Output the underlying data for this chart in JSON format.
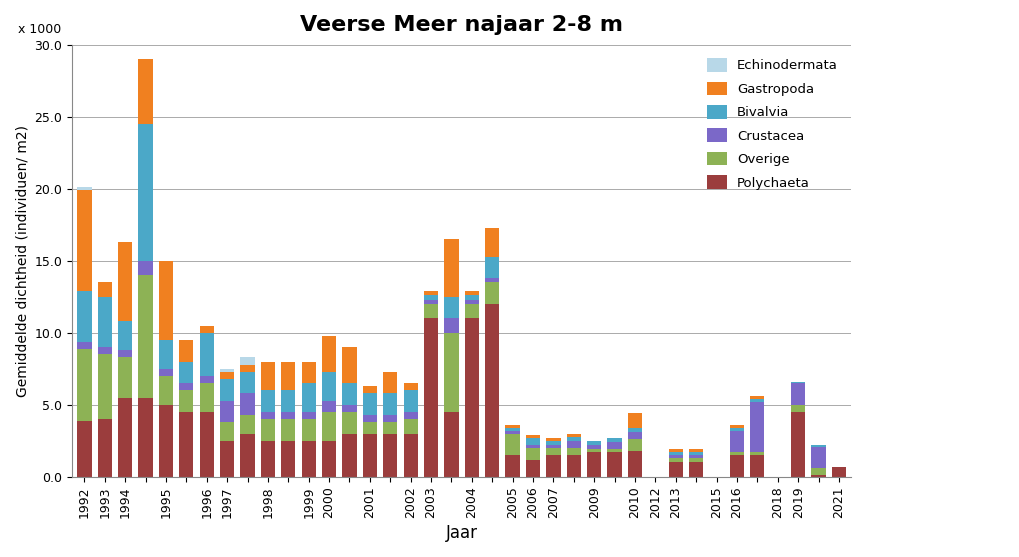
{
  "title": "Veerse Meer najaar 2-8 m",
  "ylabel": "Gemiddelde dichtheid (individuen/ m2)",
  "xlabel": "Jaar",
  "ylabel2": "x 1000",
  "ylim": [
    0,
    30.0
  ],
  "yticks": [
    0.0,
    5.0,
    10.0,
    15.0,
    20.0,
    25.0,
    30.0
  ],
  "categories": [
    "Polychaeta",
    "Overige",
    "Crustacea",
    "Bivalvia",
    "Gastropoda",
    "Echinodermata"
  ],
  "colors": [
    "#9B3D3D",
    "#8DB255",
    "#7B68C8",
    "#4BA8C8",
    "#F08020",
    "#B8D8E8"
  ],
  "x_tick_labels": [
    "1992",
    "1993",
    "1994",
    "",
    "1995",
    "",
    "1996",
    "1997",
    "",
    "1998",
    "",
    "1999",
    "2000",
    "",
    "2001",
    "",
    "2002",
    "2003",
    "",
    "2004",
    "",
    "2005",
    "2006",
    "2007",
    "",
    "2009",
    "",
    "2010",
    "2012",
    "2013",
    "",
    "2015",
    "2016",
    "",
    "2018",
    "2019",
    "",
    "2021"
  ],
  "Polychaeta": [
    3.9,
    4.0,
    5.5,
    5.5,
    5.0,
    4.5,
    4.5,
    2.5,
    3.0,
    2.5,
    2.5,
    2.5,
    2.5,
    3.0,
    3.0,
    3.0,
    3.0,
    11.0,
    4.5,
    11.0,
    12.0,
    1.5,
    1.2,
    1.5,
    1.5,
    1.7,
    1.7,
    1.8,
    0.0,
    1.0,
    1.0,
    0.0,
    1.5,
    1.5,
    0.0,
    4.5,
    0.1,
    0.7
  ],
  "Overige": [
    5.0,
    4.5,
    2.8,
    8.5,
    2.0,
    1.5,
    2.0,
    1.3,
    1.3,
    1.5,
    1.5,
    1.5,
    2.0,
    1.5,
    0.8,
    0.8,
    1.0,
    1.0,
    5.5,
    1.0,
    1.5,
    1.5,
    0.8,
    0.5,
    0.5,
    0.2,
    0.2,
    0.8,
    0.0,
    0.3,
    0.3,
    0.0,
    0.2,
    0.2,
    0.0,
    0.5,
    0.5,
    0.0
  ],
  "Crustacea": [
    0.5,
    0.5,
    0.5,
    1.0,
    0.5,
    0.5,
    0.5,
    1.5,
    1.5,
    0.5,
    0.5,
    0.5,
    0.8,
    0.5,
    0.5,
    0.5,
    0.5,
    0.3,
    1.0,
    0.3,
    0.3,
    0.2,
    0.2,
    0.2,
    0.5,
    0.3,
    0.5,
    0.5,
    0.0,
    0.2,
    0.2,
    0.0,
    1.5,
    3.5,
    0.0,
    1.5,
    1.5,
    0.0
  ],
  "Bivalvia": [
    3.5,
    3.5,
    2.0,
    9.5,
    2.0,
    1.5,
    3.0,
    1.5,
    1.5,
    1.5,
    1.5,
    2.0,
    2.0,
    1.5,
    1.5,
    1.5,
    1.5,
    0.3,
    1.5,
    0.3,
    1.5,
    0.2,
    0.5,
    0.3,
    0.3,
    0.3,
    0.3,
    0.3,
    0.0,
    0.2,
    0.2,
    0.0,
    0.2,
    0.2,
    0.0,
    0.1,
    0.1,
    0.0
  ],
  "Gastropoda": [
    7.0,
    1.0,
    5.5,
    4.5,
    5.5,
    1.5,
    0.5,
    0.5,
    0.5,
    2.0,
    2.0,
    1.5,
    2.5,
    2.5,
    0.5,
    1.5,
    0.5,
    0.3,
    4.0,
    0.3,
    2.0,
    0.2,
    0.2,
    0.2,
    0.2,
    0.0,
    0.0,
    1.0,
    0.0,
    0.2,
    0.2,
    0.0,
    0.2,
    0.2,
    0.0,
    0.0,
    0.0,
    0.0
  ],
  "Echinodermata": [
    0.2,
    0.0,
    0.0,
    0.0,
    0.0,
    0.0,
    0.0,
    0.2,
    0.5,
    0.0,
    0.0,
    0.0,
    0.0,
    0.0,
    0.0,
    0.0,
    0.0,
    0.0,
    0.0,
    0.0,
    0.0,
    0.0,
    0.0,
    0.0,
    0.0,
    0.0,
    0.0,
    0.0,
    0.0,
    0.0,
    0.0,
    0.0,
    0.0,
    0.0,
    0.0,
    0.0,
    0.0,
    0.0
  ],
  "bar_width": 0.7
}
